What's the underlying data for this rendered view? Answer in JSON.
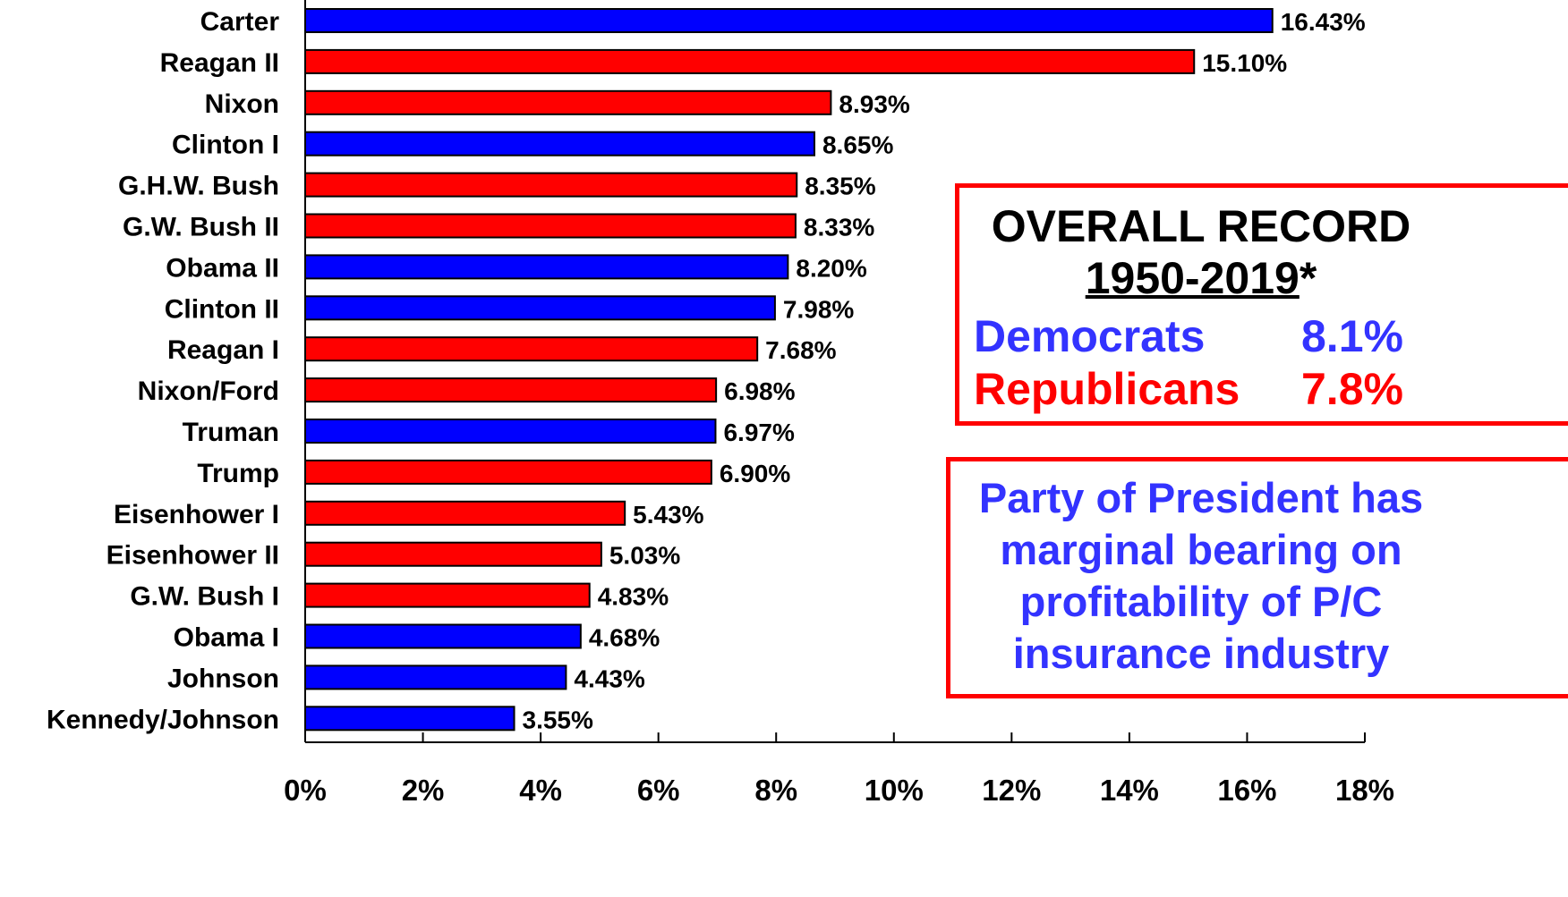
{
  "colors": {
    "democrat": "#0000ff",
    "republican": "#ff0000",
    "box_border": "#ff0000",
    "dem_text": "#3333ff",
    "rep_text": "#ff0000"
  },
  "chart_data": {
    "type": "bar",
    "orientation": "horizontal",
    "categories": [
      "Carter",
      "Reagan II",
      "Nixon",
      "Clinton I",
      "G.H.W. Bush",
      "G.W. Bush II",
      "Obama II",
      "Clinton II",
      "Reagan I",
      "Nixon/Ford",
      "Truman",
      "Trump",
      "Eisenhower I",
      "Eisenhower II",
      "G.W. Bush I",
      "Obama I",
      "Johnson",
      "Kennedy/Johnson"
    ],
    "values": [
      16.43,
      15.1,
      8.93,
      8.65,
      8.35,
      8.33,
      8.2,
      7.98,
      7.68,
      6.98,
      6.97,
      6.9,
      5.43,
      5.03,
      4.83,
      4.68,
      4.43,
      3.55
    ],
    "value_labels": [
      "16.43%",
      "15.10%",
      "8.93%",
      "8.65%",
      "8.35%",
      "8.33%",
      "8.20%",
      "7.98%",
      "7.68%",
      "6.98%",
      "6.97%",
      "6.90%",
      "5.43%",
      "5.03%",
      "4.83%",
      "4.68%",
      "4.43%",
      "3.55%"
    ],
    "party": [
      "D",
      "R",
      "R",
      "D",
      "R",
      "R",
      "D",
      "D",
      "R",
      "R",
      "D",
      "R",
      "R",
      "R",
      "R",
      "D",
      "D",
      "D"
    ],
    "xlim": [
      0,
      18
    ],
    "x_ticks": [
      0,
      2,
      4,
      6,
      8,
      10,
      12,
      14,
      16,
      18
    ],
    "x_tick_labels": [
      "0%",
      "2%",
      "4%",
      "6%",
      "8%",
      "10%",
      "12%",
      "14%",
      "16%",
      "18%"
    ],
    "grid": false,
    "title": "",
    "xlabel": "",
    "ylabel": ""
  },
  "overall_record": {
    "title": "OVERALL RECORD",
    "years": "1950-2019",
    "asterisk": "*",
    "democrats_label": "Democrats",
    "democrats_value": "8.1%",
    "republicans_label": "Republicans",
    "republicans_value": "7.8%"
  },
  "party_note": {
    "lines": [
      "Party of President has",
      "marginal bearing on",
      "profitability of P/C",
      "insurance industry"
    ]
  }
}
